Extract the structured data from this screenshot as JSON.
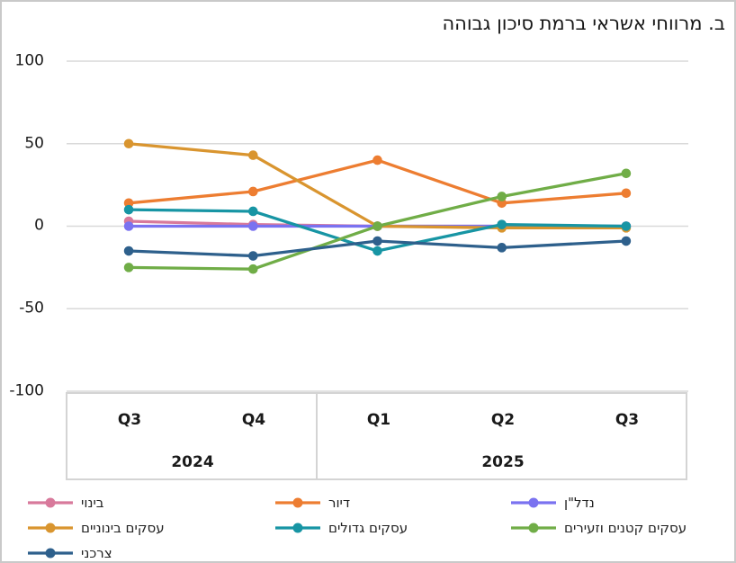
{
  "title": "ב. מרווחי אשראי ברמת סיכון גבוהה",
  "chart_data": {
    "type": "line",
    "title": "ב. מרווחי אשראי ברמת סיכון גבוהה",
    "x_axis": {
      "quarters": [
        "Q3",
        "Q4",
        "Q1",
        "Q2",
        "Q3"
      ],
      "year_groups": [
        {
          "label": "2024",
          "span": 2
        },
        {
          "label": "2025",
          "span": 3
        }
      ]
    },
    "y_axis": {
      "ticks": [
        100,
        50,
        0,
        -50,
        -100
      ],
      "ylim": [
        -100,
        100
      ],
      "grid": "horizontal"
    },
    "legend_position": "bottom",
    "grid_color": "#d9d9d9",
    "series": [
      {
        "id": "construction",
        "name": "בינוי",
        "color": "#d8799b",
        "values": [
          3,
          1,
          0,
          0,
          0
        ]
      },
      {
        "id": "housing",
        "name": "דיור",
        "color": "#ed7d31",
        "values": [
          14,
          21,
          40,
          14,
          20
        ]
      },
      {
        "id": "real-estate",
        "name": "נדל\"ן",
        "color": "#7a72f0",
        "values": [
          0,
          0,
          0,
          0,
          0
        ]
      },
      {
        "id": "medium-businesses",
        "name": "עסקים בינוניים",
        "color": "#d9952f",
        "values": [
          50,
          43,
          0,
          -1,
          -1
        ]
      },
      {
        "id": "large-businesses",
        "name": "עסקים גדולים",
        "color": "#1795a4",
        "values": [
          10,
          9,
          -15,
          1,
          0
        ]
      },
      {
        "id": "small-micro-businesses",
        "name": "עסקים קטנים וזעירים",
        "color": "#70ad47",
        "values": [
          -25,
          -26,
          0,
          18,
          32
        ]
      },
      {
        "id": "consumer",
        "name": "צרכני",
        "color": "#2e608c",
        "values": [
          -15,
          -18,
          -9,
          -13,
          -9
        ]
      }
    ]
  }
}
